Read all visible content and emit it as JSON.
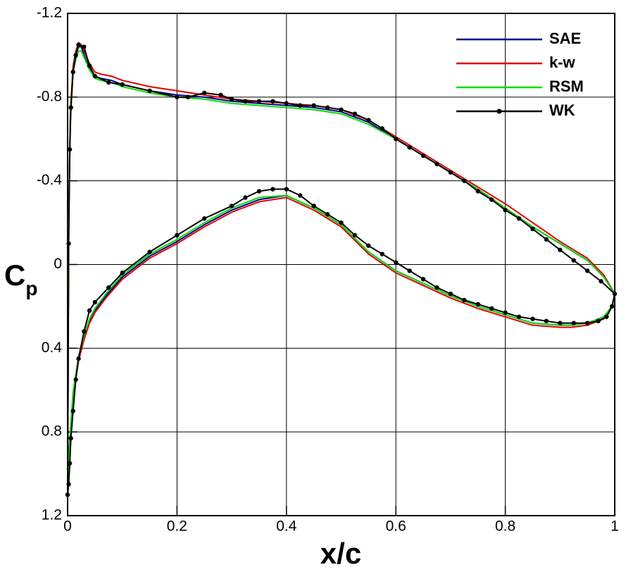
{
  "chart_data": {
    "type": "line",
    "xlabel": "x/c",
    "ylabel": "C",
    "ylabel_sub": "p",
    "xlim": [
      0,
      1
    ],
    "xticks": [
      0,
      0.2,
      0.4,
      0.6,
      0.8,
      1
    ],
    "ylim": [
      -1.2,
      1.2
    ],
    "yticks": [
      -1.2,
      -0.8,
      -0.4,
      0,
      0.4,
      0.8,
      1.2
    ],
    "y_inverted": true,
    "grid": true,
    "legend": "top-right",
    "series": [
      {
        "name": "SAE",
        "color": "#00008b",
        "markers": false,
        "x": [
          0,
          0.002,
          0.005,
          0.01,
          0.015,
          0.02,
          0.025,
          0.03,
          0.04,
          0.05,
          0.06,
          0.08,
          0.1,
          0.15,
          0.2,
          0.25,
          0.3,
          0.35,
          0.4,
          0.45,
          0.5,
          0.55,
          0.6,
          0.65,
          0.7,
          0.75,
          0.8,
          0.85,
          0.9,
          0.95,
          0.98,
          1.0,
          0.995,
          0.98,
          0.95,
          0.92,
          0.9,
          0.85,
          0.8,
          0.75,
          0.7,
          0.65,
          0.6,
          0.55,
          0.5,
          0.45,
          0.4,
          0.35,
          0.3,
          0.25,
          0.2,
          0.15,
          0.1,
          0.07,
          0.05,
          0.04,
          0.03,
          0.02,
          0.01,
          0.005,
          0.002,
          0
        ],
        "values": [
          1.1,
          -0.2,
          -0.7,
          -0.93,
          -1.0,
          -1.04,
          -1.04,
          -1.0,
          -0.94,
          -0.9,
          -0.89,
          -0.88,
          -0.86,
          -0.83,
          -0.81,
          -0.8,
          -0.78,
          -0.77,
          -0.76,
          -0.75,
          -0.73,
          -0.68,
          -0.6,
          -0.52,
          -0.44,
          -0.36,
          -0.27,
          -0.18,
          -0.1,
          -0.02,
          0.06,
          0.14,
          0.2,
          0.25,
          0.28,
          0.29,
          0.29,
          0.28,
          0.24,
          0.2,
          0.15,
          0.09,
          0.03,
          -0.06,
          -0.19,
          -0.27,
          -0.33,
          -0.31,
          -0.26,
          -0.19,
          -0.11,
          -0.04,
          0.06,
          0.15,
          0.22,
          0.27,
          0.35,
          0.45,
          0.62,
          0.8,
          0.95,
          1.1
        ]
      },
      {
        "name": "k-w",
        "color": "#e00000",
        "markers": false,
        "x": [
          0,
          0.002,
          0.005,
          0.01,
          0.015,
          0.02,
          0.025,
          0.03,
          0.04,
          0.05,
          0.06,
          0.08,
          0.1,
          0.15,
          0.2,
          0.25,
          0.3,
          0.35,
          0.4,
          0.45,
          0.5,
          0.55,
          0.6,
          0.65,
          0.7,
          0.75,
          0.8,
          0.85,
          0.9,
          0.95,
          0.98,
          1.0,
          0.995,
          0.98,
          0.95,
          0.92,
          0.9,
          0.85,
          0.8,
          0.75,
          0.7,
          0.65,
          0.6,
          0.55,
          0.5,
          0.45,
          0.4,
          0.35,
          0.3,
          0.25,
          0.2,
          0.15,
          0.1,
          0.07,
          0.05,
          0.04,
          0.03,
          0.02,
          0.01,
          0.005,
          0.002,
          0
        ],
        "values": [
          1.1,
          -0.2,
          -0.72,
          -0.95,
          -1.02,
          -1.06,
          -1.05,
          -1.02,
          -0.96,
          -0.92,
          -0.91,
          -0.9,
          -0.88,
          -0.85,
          -0.83,
          -0.81,
          -0.79,
          -0.78,
          -0.77,
          -0.76,
          -0.74,
          -0.69,
          -0.61,
          -0.53,
          -0.45,
          -0.37,
          -0.29,
          -0.2,
          -0.11,
          -0.03,
          0.05,
          0.14,
          0.2,
          0.26,
          0.29,
          0.3,
          0.3,
          0.29,
          0.25,
          0.21,
          0.16,
          0.1,
          0.04,
          -0.05,
          -0.18,
          -0.26,
          -0.32,
          -0.3,
          -0.25,
          -0.18,
          -0.1,
          -0.03,
          0.07,
          0.16,
          0.23,
          0.28,
          0.36,
          0.46,
          0.63,
          0.8,
          0.95,
          1.1
        ]
      },
      {
        "name": "RSM",
        "color": "#00dd00",
        "markers": false,
        "x": [
          0,
          0.002,
          0.005,
          0.01,
          0.015,
          0.02,
          0.025,
          0.03,
          0.04,
          0.05,
          0.06,
          0.08,
          0.1,
          0.15,
          0.2,
          0.25,
          0.3,
          0.35,
          0.4,
          0.45,
          0.5,
          0.55,
          0.6,
          0.65,
          0.7,
          0.75,
          0.8,
          0.85,
          0.9,
          0.95,
          0.98,
          1.0,
          0.995,
          0.98,
          0.95,
          0.92,
          0.9,
          0.85,
          0.8,
          0.75,
          0.7,
          0.65,
          0.6,
          0.55,
          0.5,
          0.45,
          0.4,
          0.35,
          0.3,
          0.25,
          0.2,
          0.15,
          0.1,
          0.07,
          0.05,
          0.04,
          0.03,
          0.02,
          0.01,
          0.005,
          0.002,
          0
        ],
        "values": [
          1.1,
          -0.2,
          -0.68,
          -0.92,
          -0.98,
          -1.02,
          -1.02,
          -0.99,
          -0.93,
          -0.89,
          -0.88,
          -0.87,
          -0.85,
          -0.82,
          -0.8,
          -0.79,
          -0.77,
          -0.76,
          -0.75,
          -0.74,
          -0.72,
          -0.67,
          -0.6,
          -0.52,
          -0.44,
          -0.36,
          -0.27,
          -0.18,
          -0.1,
          -0.02,
          0.06,
          0.14,
          0.2,
          0.25,
          0.28,
          0.29,
          0.29,
          0.28,
          0.24,
          0.2,
          0.15,
          0.09,
          0.03,
          -0.06,
          -0.19,
          -0.27,
          -0.33,
          -0.32,
          -0.27,
          -0.2,
          -0.12,
          -0.05,
          0.05,
          0.14,
          0.21,
          0.26,
          0.34,
          0.44,
          0.61,
          0.8,
          0.95,
          1.1
        ]
      },
      {
        "name": "WK",
        "color": "#000000",
        "markers": true,
        "x": [
          0,
          0.002,
          0.004,
          0.006,
          0.01,
          0.015,
          0.02,
          0.03,
          0.04,
          0.05,
          0.075,
          0.1,
          0.15,
          0.2,
          0.22,
          0.25,
          0.28,
          0.3,
          0.325,
          0.35,
          0.375,
          0.4,
          0.425,
          0.45,
          0.475,
          0.5,
          0.525,
          0.55,
          0.575,
          0.6,
          0.625,
          0.65,
          0.675,
          0.7,
          0.725,
          0.75,
          0.775,
          0.8,
          0.825,
          0.85,
          0.875,
          0.9,
          0.925,
          0.95,
          0.975,
          1.0,
          0.995,
          0.985,
          0.97,
          0.95,
          0.925,
          0.9,
          0.875,
          0.85,
          0.825,
          0.8,
          0.775,
          0.75,
          0.725,
          0.7,
          0.675,
          0.65,
          0.625,
          0.6,
          0.575,
          0.55,
          0.525,
          0.5,
          0.475,
          0.45,
          0.425,
          0.4,
          0.375,
          0.35,
          0.325,
          0.3,
          0.25,
          0.2,
          0.15,
          0.1,
          0.075,
          0.05,
          0.04,
          0.03,
          0.02,
          0.015,
          0.01,
          0.006,
          0.004,
          0.002,
          0
        ],
        "values": [
          1.1,
          -0.1,
          -0.55,
          -0.75,
          -0.92,
          -1.0,
          -1.05,
          -1.04,
          -0.95,
          -0.9,
          -0.87,
          -0.86,
          -0.83,
          -0.8,
          -0.8,
          -0.82,
          -0.81,
          -0.79,
          -0.78,
          -0.78,
          -0.78,
          -0.77,
          -0.76,
          -0.76,
          -0.75,
          -0.74,
          -0.72,
          -0.69,
          -0.65,
          -0.6,
          -0.56,
          -0.52,
          -0.48,
          -0.44,
          -0.4,
          -0.35,
          -0.31,
          -0.26,
          -0.22,
          -0.17,
          -0.12,
          -0.07,
          -0.02,
          0.03,
          0.08,
          0.14,
          0.2,
          0.25,
          0.27,
          0.28,
          0.28,
          0.28,
          0.27,
          0.26,
          0.25,
          0.23,
          0.21,
          0.19,
          0.17,
          0.14,
          0.11,
          0.07,
          0.03,
          -0.01,
          -0.05,
          -0.09,
          -0.14,
          -0.2,
          -0.24,
          -0.28,
          -0.33,
          -0.36,
          -0.36,
          -0.35,
          -0.32,
          -0.28,
          -0.22,
          -0.14,
          -0.06,
          0.04,
          0.11,
          0.18,
          0.22,
          0.32,
          0.45,
          0.55,
          0.7,
          0.83,
          0.95,
          1.05,
          1.1
        ]
      }
    ]
  }
}
